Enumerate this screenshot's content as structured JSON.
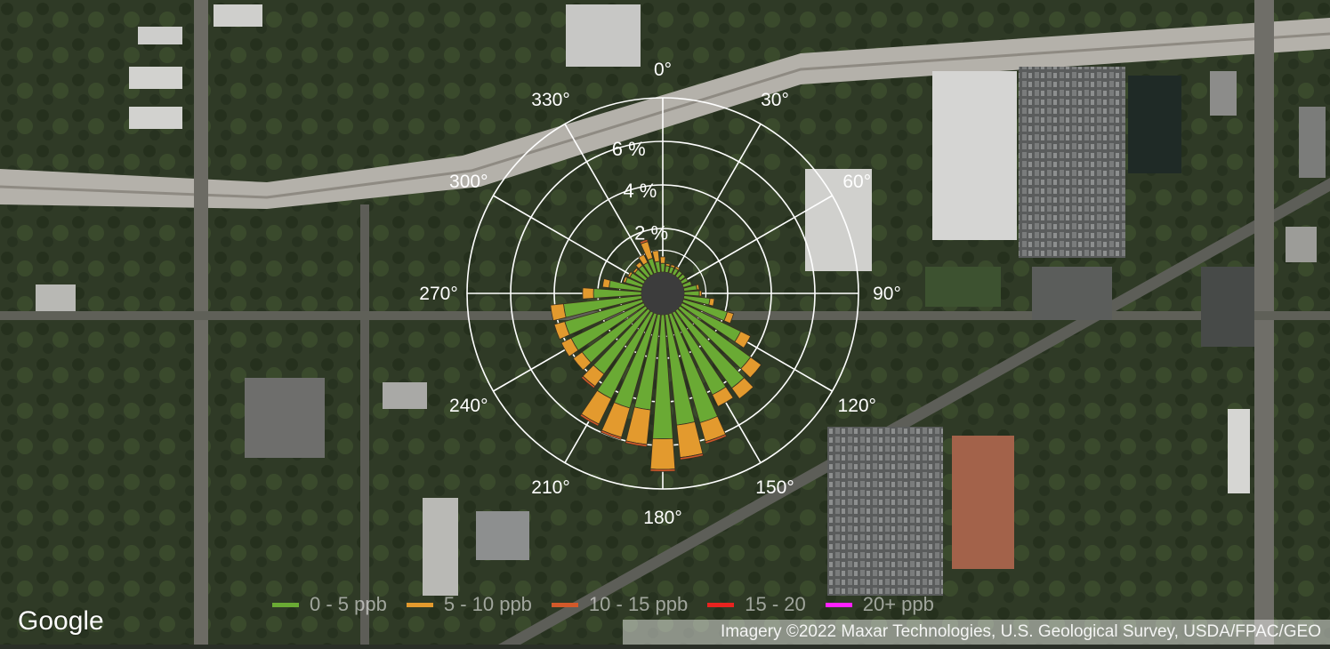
{
  "map": {
    "logo_text": "Google",
    "attribution": "Imagery ©2022 Maxar Technologies, U.S. Geological Survey, USDA/FPAC/GEO"
  },
  "chart_data": {
    "type": "polar-stacked-bar",
    "angular_labels": [
      "0°",
      "30°",
      "60°",
      "90°",
      "120°",
      "150°",
      "180°",
      "210°",
      "240°",
      "270°",
      "300°",
      "330°"
    ],
    "radial_labels": [
      "2 %",
      "4 %",
      "6 %"
    ],
    "radial_ticks": [
      2,
      4,
      6
    ],
    "radial_max": 8,
    "sector_width_deg": 10,
    "series": [
      {
        "name": "0 - 5 ppb",
        "color": "#6aaa34"
      },
      {
        "name": "5 - 10 ppb",
        "color": "#e39a2e"
      },
      {
        "name": "10 - 15 ppb",
        "color": "#d2592a"
      },
      {
        "name": "15 - 20",
        "color": "#e8231f"
      },
      {
        "name": "20+ ppb",
        "color": "#ff21ff"
      }
    ],
    "directions": [
      0,
      10,
      20,
      30,
      40,
      50,
      60,
      70,
      80,
      90,
      100,
      110,
      120,
      130,
      140,
      150,
      160,
      170,
      180,
      190,
      200,
      210,
      220,
      230,
      240,
      250,
      260,
      270,
      280,
      290,
      300,
      310,
      320,
      330,
      340,
      350
    ],
    "values": [
      [
        0.4,
        0.3,
        0,
        0,
        0
      ],
      [
        0.3,
        0.1,
        0,
        0,
        0
      ],
      [
        0.3,
        0.1,
        0,
        0,
        0
      ],
      [
        0.3,
        0.1,
        0,
        0,
        0
      ],
      [
        0.3,
        0,
        0,
        0,
        0
      ],
      [
        0.3,
        0,
        0,
        0,
        0
      ],
      [
        0.3,
        0,
        0,
        0,
        0
      ],
      [
        0.4,
        0,
        0,
        0,
        0
      ],
      [
        0.6,
        0.1,
        0,
        0,
        0
      ],
      [
        0.7,
        0.1,
        0,
        0,
        0
      ],
      [
        1.2,
        0.2,
        0,
        0,
        0
      ],
      [
        2.1,
        0.3,
        0,
        0,
        0
      ],
      [
        3.0,
        0.5,
        0,
        0,
        0
      ],
      [
        4.0,
        0.6,
        0,
        0,
        0
      ],
      [
        4.4,
        0.6,
        0,
        0,
        0
      ],
      [
        4.2,
        0.6,
        0,
        0,
        0
      ],
      [
        5.2,
        0.9,
        0.1,
        0,
        0
      ],
      [
        5.1,
        1.5,
        0.1,
        0,
        0
      ],
      [
        5.7,
        1.4,
        0.1,
        0,
        0
      ],
      [
        4.4,
        1.6,
        0.1,
        0,
        0
      ],
      [
        4.5,
        1.4,
        0.1,
        0,
        0
      ],
      [
        4.4,
        1.3,
        0.1,
        0,
        0
      ],
      [
        3.6,
        0.7,
        0.1,
        0,
        0
      ],
      [
        3.6,
        0.5,
        0,
        0,
        0
      ],
      [
        3.7,
        0.5,
        0,
        0,
        0
      ],
      [
        3.7,
        0.5,
        0,
        0,
        0
      ],
      [
        3.6,
        0.6,
        0,
        0,
        0
      ],
      [
        2.2,
        0.5,
        0,
        0,
        0
      ],
      [
        1.5,
        0.3,
        0,
        0,
        0
      ],
      [
        0.8,
        0.1,
        0,
        0,
        0
      ],
      [
        0.7,
        0.1,
        0,
        0,
        0
      ],
      [
        0.6,
        0.1,
        0,
        0,
        0
      ],
      [
        0.6,
        0.2,
        0,
        0,
        0
      ],
      [
        0.6,
        0.4,
        0,
        0,
        0
      ],
      [
        0.7,
        0.8,
        0.1,
        0,
        0
      ],
      [
        0.5,
        0.5,
        0,
        0,
        0
      ]
    ],
    "grid": true
  }
}
